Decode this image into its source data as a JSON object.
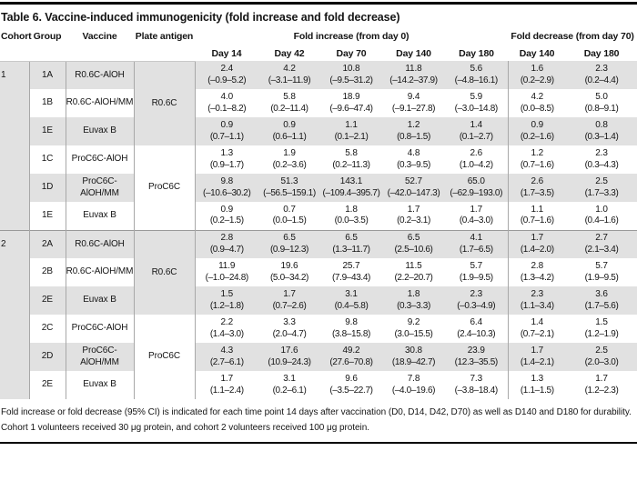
{
  "title": "Table 6. Vaccine-induced immunogenicity (fold increase and fold decrease)",
  "colors": {
    "stripe_gray": "#e1e1e1",
    "rule_gray": "#a8a8a8",
    "section_divider": "#999999",
    "frame_black": "#000000"
  },
  "table": {
    "headers": {
      "cohort": "Cohort",
      "group": "Group",
      "vaccine": "Vaccine",
      "plate_antigen": "Plate antigen"
    },
    "group_headers": {
      "fold_increase": "Fold increase (from day 0)",
      "fold_decrease": "Fold decrease (from day 70)"
    },
    "day_headers_increase": [
      "Day 14",
      "Day 42",
      "Day 70",
      "Day 140",
      "Day 180"
    ],
    "day_headers_decrease": [
      "Day 140",
      "Day 180"
    ],
    "sections": [
      {
        "cohort": "1",
        "rows": [
          {
            "group": "1A",
            "vaccine": "R0.6C-AlOH",
            "plate_antigen": "R0.6C",
            "values": [
              [
                "2.4",
                "(–0.9–5.2)"
              ],
              [
                "4.2",
                "(–3.1–11.9)"
              ],
              [
                "10.8",
                "(–9.5–31.2)"
              ],
              [
                "11.8",
                "(–14.2–37.9)"
              ],
              [
                "5.6",
                "(–4.8–16.1)"
              ],
              [
                "1.6",
                "(0.2–2.9)"
              ],
              [
                "2.3",
                "(0.2–4.4)"
              ]
            ]
          },
          {
            "group": "1B",
            "vaccine": "R0.6C-AlOH/MM",
            "plate_antigen": "",
            "values": [
              [
                "4.0",
                "(–0.1–8.2)"
              ],
              [
                "5.8",
                "(0.2–11.4)"
              ],
              [
                "18.9",
                "(–9.6–47.4)"
              ],
              [
                "9.4",
                "(–9.1–27.8)"
              ],
              [
                "5.9",
                "(–3.0–14.8)"
              ],
              [
                "4.2",
                "(0.0–8.5)"
              ],
              [
                "5.0",
                "(0.8–9.1)"
              ]
            ]
          },
          {
            "group": "1E",
            "vaccine": "Euvax B",
            "plate_antigen": "",
            "values": [
              [
                "0.9",
                "(0.7–1.1)"
              ],
              [
                "0.9",
                "(0.6–1.1)"
              ],
              [
                "1.1",
                "(0.1–2.1)"
              ],
              [
                "1.2",
                "(0.8–1.5)"
              ],
              [
                "1.4",
                "(0.1–2.7)"
              ],
              [
                "0.9",
                "(0.2–1.6)"
              ],
              [
                "0.8",
                "(0.3–1.4)"
              ]
            ]
          },
          {
            "group": "1C",
            "vaccine": "ProC6C-AlOH",
            "plate_antigen": "ProC6C",
            "values": [
              [
                "1.3",
                "(0.9–1.7)"
              ],
              [
                "1.9",
                "(0.2–3.6)"
              ],
              [
                "5.8",
                "(0.2–11.3)"
              ],
              [
                "4.8",
                "(0.3–9.5)"
              ],
              [
                "2.6",
                "(1.0–4.2)"
              ],
              [
                "1.2",
                "(0.7–1.6)"
              ],
              [
                "2.3",
                "(0.3–4.3)"
              ]
            ]
          },
          {
            "group": "1D",
            "vaccine": "ProC6C-AlOH/MM",
            "plate_antigen": "",
            "values": [
              [
                "9.8",
                "(–10.6–30.2)"
              ],
              [
                "51.3",
                "(–56.5–159.1)"
              ],
              [
                "143.1",
                "(–109.4–395.7)"
              ],
              [
                "52.7",
                "(–42.0–147.3)"
              ],
              [
                "65.0",
                "(–62.9–193.0)"
              ],
              [
                "2.6",
                "(1.7–3.5)"
              ],
              [
                "2.5",
                "(1.7–3.3)"
              ]
            ]
          },
          {
            "group": "1E",
            "vaccine": "Euvax B",
            "plate_antigen": "",
            "values": [
              [
                "0.9",
                "(0.2–1.5)"
              ],
              [
                "0.7",
                "(0.0–1.5)"
              ],
              [
                "1.8",
                "(0.0–3.5)"
              ],
              [
                "1.7",
                "(0.2–3.1)"
              ],
              [
                "1.7",
                "(0.4–3.0)"
              ],
              [
                "1.1",
                "(0.7–1.6)"
              ],
              [
                "1.0",
                "(0.4–1.6)"
              ]
            ]
          }
        ]
      },
      {
        "cohort": "2",
        "rows": [
          {
            "group": "2A",
            "vaccine": "R0.6C-AlOH",
            "plate_antigen": "R0.6C",
            "values": [
              [
                "2.8",
                "(0.9–4.7)"
              ],
              [
                "6.5",
                "(0.9–12.3)"
              ],
              [
                "6.5",
                "(1.3–11.7)"
              ],
              [
                "6.5",
                "(2.5–10.6)"
              ],
              [
                "4.1",
                "(1.7–6.5)"
              ],
              [
                "1.7",
                "(1.4–2.0)"
              ],
              [
                "2.7",
                "(2.1–3.4)"
              ]
            ]
          },
          {
            "group": "2B",
            "vaccine": "R0.6C-AlOH/MM",
            "plate_antigen": "",
            "values": [
              [
                "11.9",
                "(–1.0–24.8)"
              ],
              [
                "19.6",
                "(5.0–34.2)"
              ],
              [
                "25.7",
                "(7.9–43.4)"
              ],
              [
                "11.5",
                "(2.2–20.7)"
              ],
              [
                "5.7",
                "(1.9–9.5)"
              ],
              [
                "2.8",
                "(1.3–4.2)"
              ],
              [
                "5.7",
                "(1.9–9.5)"
              ]
            ]
          },
          {
            "group": "2E",
            "vaccine": "Euvax B",
            "plate_antigen": "",
            "values": [
              [
                "1.5",
                "(1.2–1.8)"
              ],
              [
                "1.7",
                "(0.7–2.6)"
              ],
              [
                "3.1",
                "(0.4–5.8)"
              ],
              [
                "1.8",
                "(0.3–3.3)"
              ],
              [
                "2.3",
                "(–0.3–4.9)"
              ],
              [
                "2.3",
                "(1.1–3.4)"
              ],
              [
                "3.6",
                "(1.7–5.6)"
              ]
            ]
          },
          {
            "group": "2C",
            "vaccine": "ProC6C-AlOH",
            "plate_antigen": "ProC6C",
            "values": [
              [
                "2.2",
                "(1.4–3.0)"
              ],
              [
                "3.3",
                "(2.0–4.7)"
              ],
              [
                "9.8",
                "(3.8–15.8)"
              ],
              [
                "9.2",
                "(3.0–15.5)"
              ],
              [
                "6.4",
                "(2.4–10.3)"
              ],
              [
                "1.4",
                "(0.7–2.1)"
              ],
              [
                "1.5",
                "(1.2–1.9)"
              ]
            ]
          },
          {
            "group": "2D",
            "vaccine": "ProC6C-AlOH/MM",
            "plate_antigen": "",
            "values": [
              [
                "4.3",
                "(2.7–6.1)"
              ],
              [
                "17.6",
                "(10.9–24.3)"
              ],
              [
                "49.2",
                "(27.6–70.8)"
              ],
              [
                "30.8",
                "(18.9–42.7)"
              ],
              [
                "23.9",
                "(12.3–35.5)"
              ],
              [
                "1.7",
                "(1.4–2.1)"
              ],
              [
                "2.5",
                "(2.0–3.0)"
              ]
            ]
          },
          {
            "group": "2E",
            "vaccine": "Euvax B",
            "plate_antigen": "",
            "values": [
              [
                "1.7",
                "(1.1–2.4)"
              ],
              [
                "3.1",
                "(0.2–6.1)"
              ],
              [
                "9.6",
                "(–3.5–22.7)"
              ],
              [
                "7.8",
                "(–4.0–19.6)"
              ],
              [
                "7.3",
                "(–3.8–18.4)"
              ],
              [
                "1.3",
                "(1.1–1.5)"
              ],
              [
                "1.7",
                "(1.2–2.3)"
              ]
            ]
          }
        ]
      }
    ]
  },
  "footnote": {
    "lines": [
      "Fold increase or fold decrease (95% CI) is indicated for each time point 14 days after vaccination (D0, D14, D42, D70) as well as D140 and D180 for durability.",
      "Cohort 1 volunteers received 30 μg protein, and cohort 2 volunteers received 100 μg protein."
    ]
  }
}
